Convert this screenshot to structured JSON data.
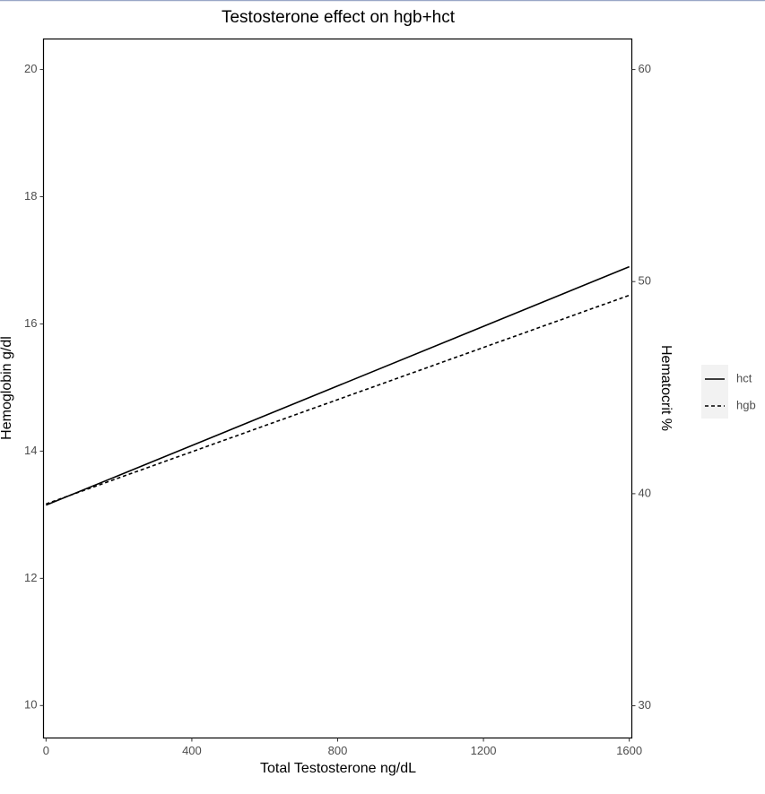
{
  "chart_data": {
    "type": "line",
    "title": "Testosterone effect on hgb+hct",
    "x_label": "Total Testosterone ng/dL",
    "y_label": "Hemoglobin g/dl",
    "y2_label": "Hematocrit %",
    "x": [
      0,
      1600
    ],
    "series": [
      {
        "name": "hct",
        "color": "#000000",
        "linestyle": "solid",
        "axis": "y2",
        "values": [
          39.46,
          50.7
        ]
      },
      {
        "name": "hgb",
        "color": "#000000",
        "linestyle": "dashed",
        "values": [
          13.17,
          16.45
        ]
      }
    ],
    "xlim": [
      -7,
      1607
    ],
    "xticks": [
      0,
      400,
      800,
      1200,
      1600
    ],
    "ylim": [
      9.49,
      20.48
    ],
    "yticks": [
      10,
      12,
      14,
      16,
      18,
      20
    ],
    "y2lim": [
      28.48,
      61.44
    ],
    "y2ticks": [
      30,
      40,
      50,
      60
    ],
    "grid": false,
    "legend_position": "right"
  }
}
